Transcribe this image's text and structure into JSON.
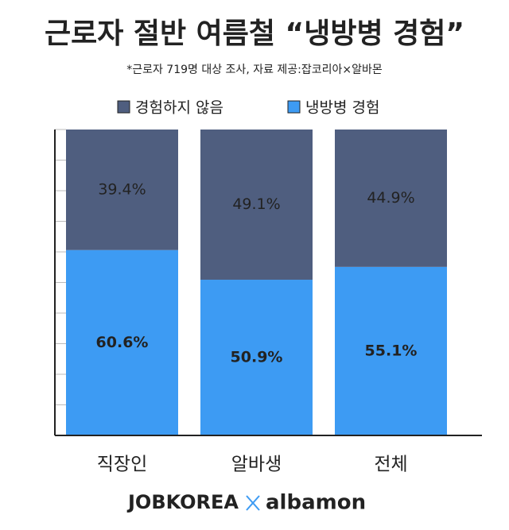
{
  "chart_data": {
    "type": "stacked_bar",
    "title": "근로자 절반 여름철 “냉방병 경험”",
    "subtitle": "*근로자 719명 대상 조사, 자료 제공:잡코리아×알바몬",
    "categories": [
      "직장인",
      "알바생",
      "전체"
    ],
    "series": [
      {
        "name": "냉방병 경험",
        "color": "#3d9bf3",
        "values": [
          60.6,
          50.9,
          55.1
        ],
        "value_labels": [
          "60.6%",
          "50.9%",
          "55.1%"
        ]
      },
      {
        "name": "경험하지 않음",
        "color": "#4f5e7f",
        "values": [
          39.4,
          49.1,
          44.9
        ],
        "value_labels": [
          "39.4%",
          "49.1%",
          "44.9%"
        ]
      }
    ],
    "legend_order": [
      1,
      0
    ],
    "ylim": [
      0,
      100
    ],
    "yticks": [
      0,
      10,
      20,
      30,
      40,
      50,
      60,
      70,
      80,
      90,
      100
    ],
    "logos": [
      "JOBKOREA",
      "albamon"
    ]
  }
}
